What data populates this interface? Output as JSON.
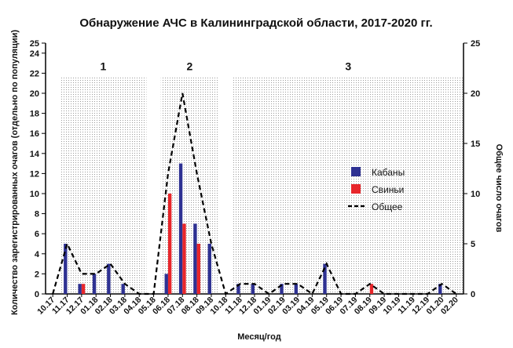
{
  "chart_data": {
    "type": "bar",
    "title": "Обнаружение АЧС в Калининградской области, 2017-2020 гг.",
    "xlabel": "Месяц/год",
    "ylabel_left": "Количество зарегистрированных очагов (отдельно по популяции)",
    "ylabel_right": "Общее число очагов",
    "ylim_left": [
      0,
      25
    ],
    "ylim_right": [
      0,
      25
    ],
    "yticks_left": [
      0,
      2,
      4,
      6,
      8,
      10,
      12,
      14,
      16,
      18,
      20,
      22,
      24,
      25
    ],
    "yticks_right": [
      0,
      5,
      10,
      15,
      20,
      25
    ],
    "categories": [
      "10.17",
      "11.17",
      "12.17",
      "01.18",
      "02.18",
      "03.18",
      "04.18",
      "05.18",
      "06.18",
      "07.18",
      "08.18",
      "09.18",
      "10.18",
      "11.18",
      "12.18",
      "01.19",
      "02.19",
      "03.19",
      "04.19",
      "05.19",
      "06.19",
      "07.19",
      "08.19",
      "09.19",
      "10.19",
      "11.19",
      "12.19",
      "01.20",
      "02.20"
    ],
    "series": [
      {
        "name": "Кабаны",
        "color": "#2e3192",
        "kind": "bar",
        "values": [
          0,
          5,
          1,
          2,
          3,
          1,
          0,
          0,
          2,
          13,
          7,
          5,
          0,
          1,
          1,
          0,
          1,
          1,
          0,
          3,
          0,
          0,
          0,
          0,
          0,
          0,
          0,
          1,
          0
        ]
      },
      {
        "name": "Свиньи",
        "color": "#e8262b",
        "kind": "bar",
        "values": [
          0,
          0,
          1,
          0,
          0,
          0,
          0,
          0,
          10,
          7,
          5,
          0,
          0,
          0,
          0,
          0,
          0,
          0,
          0,
          0,
          0,
          0,
          1,
          0,
          0,
          0,
          0,
          0,
          0
        ]
      },
      {
        "name": "Общее",
        "color": "#000000",
        "kind": "dashed-line",
        "values": [
          0,
          5,
          2,
          2,
          3,
          1,
          0,
          0,
          12,
          20,
          12,
          5,
          0,
          1,
          1,
          0,
          1,
          1,
          0,
          3,
          0,
          0,
          1,
          0,
          0,
          0,
          0,
          1,
          0
        ]
      }
    ],
    "periods": [
      {
        "label": "1",
        "from": 1,
        "to": 6
      },
      {
        "label": "2",
        "from": 8,
        "to": 11
      },
      {
        "label": "3",
        "from": 13,
        "to": 28
      }
    ],
    "legend_position": "right"
  }
}
